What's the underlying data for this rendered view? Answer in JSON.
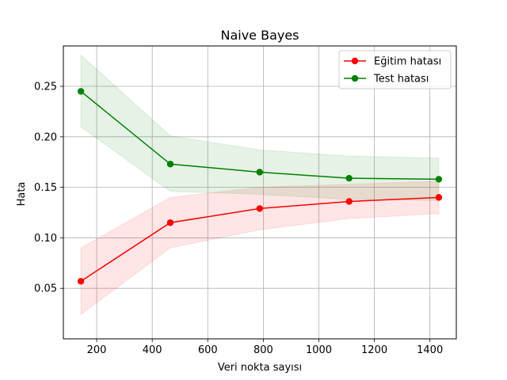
{
  "chart_data": {
    "type": "line",
    "title": "Naive Bayes",
    "xlabel": "Veri nokta sayısı",
    "ylabel": "Hata",
    "xlim": [
      80,
      1495
    ],
    "ylim": [
      0.0,
      0.29
    ],
    "xticks": [
      200,
      400,
      600,
      800,
      1000,
      1200,
      1400
    ],
    "yticks": [
      0.05,
      0.1,
      0.15,
      0.2,
      0.25
    ],
    "xtick_labels": [
      "200",
      "400",
      "600",
      "800",
      "1000",
      "1200",
      "1400"
    ],
    "ytick_labels": [
      "0.05",
      "0.10",
      "0.15",
      "0.20",
      "0.25"
    ],
    "grid": true,
    "legend_position": "upper-right",
    "x": [
      143,
      465,
      787,
      1109,
      1432
    ],
    "series": [
      {
        "name": "Eğitim hatası",
        "color": "#ff0000",
        "values": [
          0.057,
          0.115,
          0.129,
          0.136,
          0.14
        ],
        "band_upper": [
          0.09,
          0.14,
          0.15,
          0.153,
          0.156
        ],
        "band_lower": [
          0.024,
          0.09,
          0.108,
          0.119,
          0.124
        ]
      },
      {
        "name": "Test hatası",
        "color": "#008000",
        "values": [
          0.245,
          0.173,
          0.165,
          0.159,
          0.158
        ],
        "band_upper": [
          0.281,
          0.201,
          0.187,
          0.181,
          0.179
        ],
        "band_lower": [
          0.21,
          0.146,
          0.143,
          0.138,
          0.137
        ]
      }
    ]
  }
}
